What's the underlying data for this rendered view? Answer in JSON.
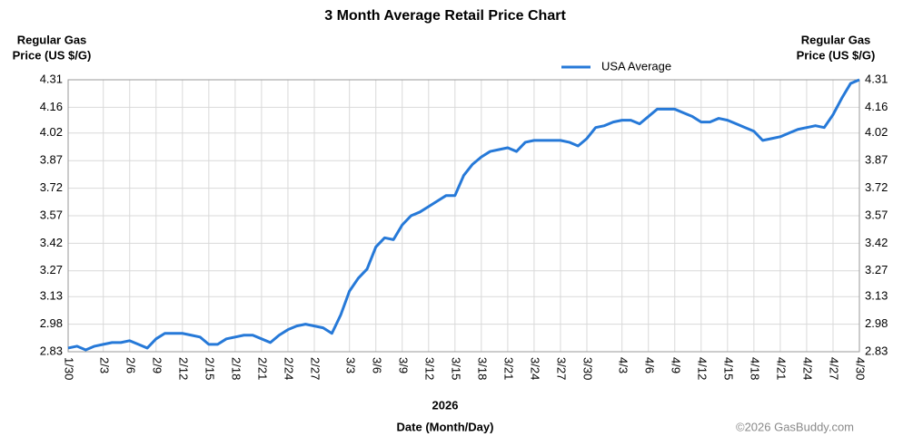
{
  "chart_data": {
    "type": "line",
    "title": "3 Month Average Retail Price Chart",
    "ylabel": [
      "Regular Gas",
      "Price (US $/G)"
    ],
    "year_label": "2026",
    "xlabel": "Date (Month/Day)",
    "credit": "©2026 GasBuddy.com",
    "legend": "top",
    "grid": true,
    "categories": [
      "1/30",
      null,
      null,
      null,
      "2/3",
      null,
      null,
      "2/6",
      null,
      null,
      "2/9",
      null,
      null,
      "2/12",
      null,
      null,
      "2/15",
      null,
      null,
      "2/18",
      null,
      null,
      "2/21",
      null,
      null,
      "2/24",
      null,
      null,
      "2/27",
      null,
      null,
      null,
      "3/3",
      null,
      null,
      "3/6",
      null,
      null,
      "3/9",
      null,
      null,
      "3/12",
      null,
      null,
      "3/15",
      null,
      null,
      "3/18",
      null,
      null,
      "3/21",
      null,
      null,
      "3/24",
      null,
      null,
      "3/27",
      null,
      null,
      "3/30",
      null,
      null,
      null,
      "4/3",
      null,
      null,
      "4/6",
      null,
      null,
      "4/9",
      null,
      null,
      "4/12",
      null,
      null,
      "4/15",
      null,
      null,
      "4/18",
      null,
      null,
      "4/21",
      null,
      null,
      "4/24",
      null,
      null,
      "4/27",
      null,
      null,
      "4/30"
    ],
    "series": [
      {
        "name": "USA Average",
        "color": "#2679d8",
        "values": [
          2.85,
          2.86,
          2.84,
          2.86,
          2.87,
          2.88,
          2.88,
          2.89,
          2.87,
          2.85,
          2.9,
          2.93,
          2.93,
          2.93,
          2.92,
          2.91,
          2.87,
          2.87,
          2.9,
          2.91,
          2.92,
          2.92,
          2.9,
          2.88,
          2.92,
          2.95,
          2.97,
          2.98,
          2.97,
          2.96,
          2.93,
          3.03,
          3.16,
          3.23,
          3.28,
          3.4,
          3.45,
          3.44,
          3.52,
          3.57,
          3.59,
          3.62,
          3.65,
          3.68,
          3.68,
          3.79,
          3.85,
          3.89,
          3.92,
          3.93,
          3.94,
          3.92,
          3.97,
          3.98,
          3.98,
          3.98,
          3.98,
          3.97,
          3.95,
          3.99,
          4.05,
          4.06,
          4.08,
          4.09,
          4.09,
          4.07,
          4.11,
          4.15,
          4.15,
          4.15,
          4.13,
          4.11,
          4.08,
          4.08,
          4.1,
          4.09,
          4.07,
          4.05,
          4.03,
          3.98,
          3.99,
          4.0,
          4.02,
          4.04,
          4.05,
          4.06,
          4.05,
          4.12,
          4.21,
          4.29,
          4.31
        ]
      }
    ],
    "ylim": [
      2.83,
      4.31
    ],
    "yticks": [
      2.83,
      2.98,
      3.13,
      3.27,
      3.42,
      3.57,
      3.72,
      3.87,
      4.02,
      4.16,
      4.31
    ]
  }
}
